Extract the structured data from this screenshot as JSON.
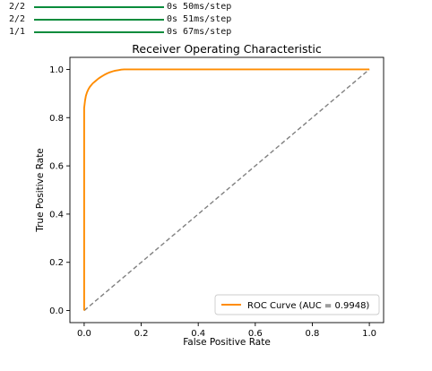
{
  "console": {
    "lines": [
      {
        "step": "2/2",
        "progress": 1.0,
        "timing": "0s 50ms/step"
      },
      {
        "step": "2/2",
        "progress": 1.0,
        "timing": "0s 51ms/step"
      },
      {
        "step": "1/1",
        "progress": 1.0,
        "timing": "0s 67ms/step"
      }
    ],
    "bar_color": "#0a8c3c"
  },
  "chart_data": {
    "type": "line",
    "title": "Receiver Operating Characteristic",
    "xlabel": "False Positive Rate",
    "ylabel": "True Positive Rate",
    "xlim": [
      -0.05,
      1.05
    ],
    "ylim": [
      -0.05,
      1.05
    ],
    "xticks": [
      0.0,
      0.2,
      0.4,
      0.6,
      0.8,
      1.0
    ],
    "yticks": [
      0.0,
      0.2,
      0.4,
      0.6,
      0.8,
      1.0
    ],
    "xtick_labels": [
      "0.0",
      "0.2",
      "0.4",
      "0.6",
      "0.8",
      "1.0"
    ],
    "ytick_labels": [
      "0.0",
      "0.2",
      "0.4",
      "0.6",
      "0.8",
      "1.0"
    ],
    "grid": false,
    "legend_position": "lower-right",
    "series": [
      {
        "name": "ROC Curve (AUC = 0.9948)",
        "color": "#ff8c00",
        "style": "solid",
        "x": [
          0.0,
          0.0,
          0.003,
          0.006,
          0.01,
          0.015,
          0.02,
          0.03,
          0.04,
          0.05,
          0.06,
          0.07,
          0.08,
          0.09,
          0.1,
          0.11,
          0.12,
          0.13,
          0.14,
          0.2,
          0.4,
          0.6,
          0.8,
          1.0
        ],
        "y": [
          0.0,
          0.84,
          0.87,
          0.89,
          0.905,
          0.918,
          0.928,
          0.942,
          0.952,
          0.962,
          0.97,
          0.977,
          0.983,
          0.988,
          0.992,
          0.995,
          0.997,
          0.999,
          1.0,
          1.0,
          1.0,
          1.0,
          1.0,
          1.0
        ]
      },
      {
        "color": "#808080",
        "style": "dashed",
        "x": [
          0.0,
          1.0
        ],
        "y": [
          0.0,
          1.0
        ]
      }
    ]
  }
}
